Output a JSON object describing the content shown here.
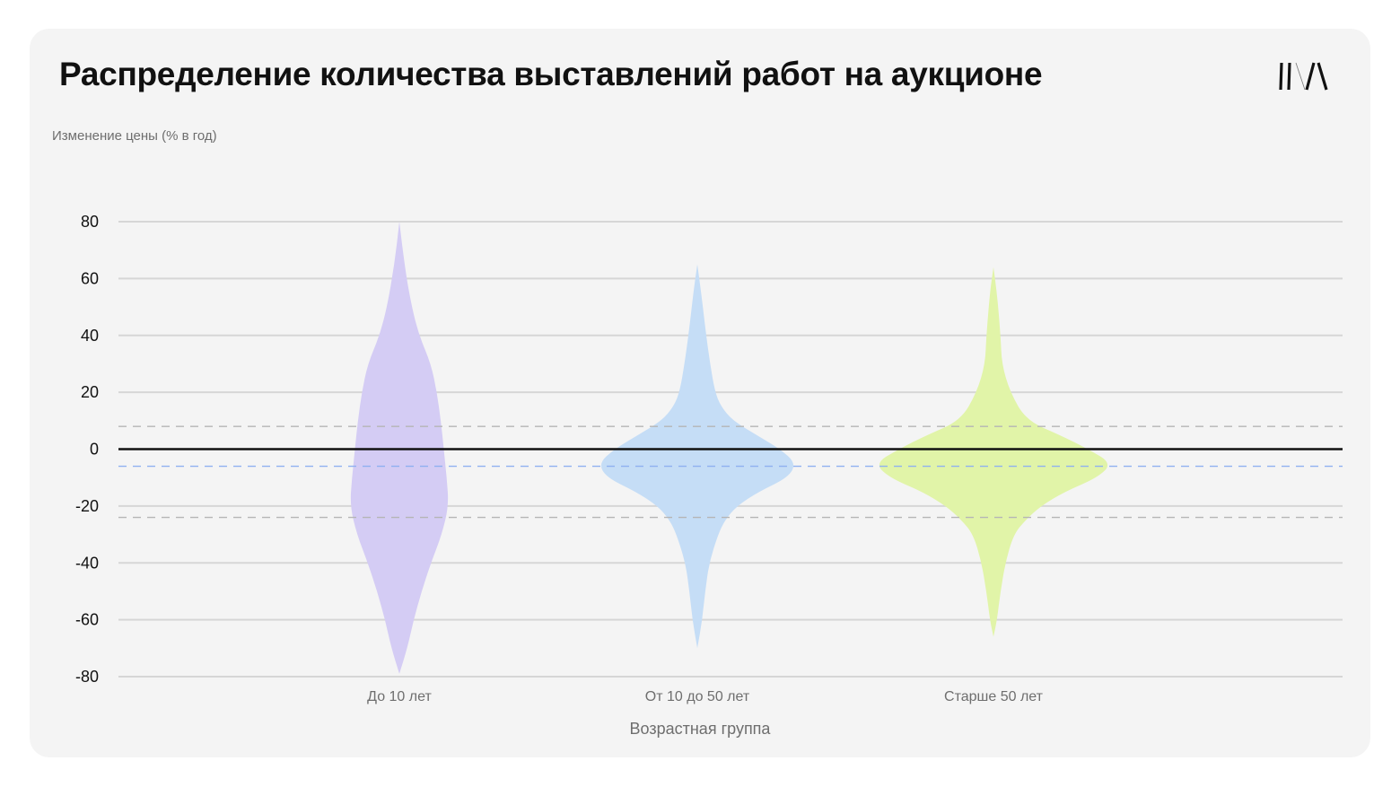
{
  "header": {
    "title": "Распределение количества выставлений работ на аукционе"
  },
  "logo": {
    "icon": "brand-logo-icon"
  },
  "chart_data": {
    "type": "violin",
    "title": "Распределение количества выставлений работ на аукционе",
    "ylabel": "Изменение цены (% в год)",
    "xlabel": "Возрастная группа",
    "ylim": [
      -80,
      80
    ],
    "yticks": [
      "80",
      "60",
      "40",
      "20",
      "0",
      "-20",
      "-40",
      "-60",
      "-80"
    ],
    "ytick_values": [
      80,
      60,
      40,
      20,
      0,
      -20,
      -40,
      -60,
      -80
    ],
    "grid": true,
    "reference_lines": [
      {
        "y": 0,
        "style": "solid",
        "color": "#111111"
      },
      {
        "y": 8,
        "style": "dashed",
        "color": "#b5b5b5"
      },
      {
        "y": -6,
        "style": "dashed",
        "color": "#8fb0f0"
      },
      {
        "y": -24,
        "style": "dashed",
        "color": "#b5b5b5"
      }
    ],
    "categories": [
      "До 10 лет",
      "От 10 до 50 лет",
      "Старше 50 лет"
    ],
    "series": [
      {
        "color": "#d4ccf4",
        "profile": [
          [
            80,
            0
          ],
          [
            65,
            0.1
          ],
          [
            50,
            0.25
          ],
          [
            40,
            0.4
          ],
          [
            30,
            0.64
          ],
          [
            20,
            0.76
          ],
          [
            10,
            0.84
          ],
          [
            0,
            0.9
          ],
          [
            -10,
            0.96
          ],
          [
            -20,
            1.0
          ],
          [
            -30,
            0.86
          ],
          [
            -40,
            0.64
          ],
          [
            -50,
            0.45
          ],
          [
            -60,
            0.29
          ],
          [
            -70,
            0.16
          ],
          [
            -79,
            0
          ]
        ]
      },
      {
        "color": "#c5ddf6",
        "profile": [
          [
            65,
            0
          ],
          [
            55,
            0.04
          ],
          [
            40,
            0.09
          ],
          [
            30,
            0.13
          ],
          [
            20,
            0.18
          ],
          [
            15,
            0.24
          ],
          [
            10,
            0.36
          ],
          [
            5,
            0.6
          ],
          [
            0,
            0.84
          ],
          [
            -5,
            1.0
          ],
          [
            -10,
            0.92
          ],
          [
            -15,
            0.62
          ],
          [
            -20,
            0.4
          ],
          [
            -25,
            0.28
          ],
          [
            -30,
            0.21
          ],
          [
            -40,
            0.12
          ],
          [
            -50,
            0.08
          ],
          [
            -60,
            0.05
          ],
          [
            -70,
            0
          ]
        ]
      },
      {
        "color": "#e1f4a8",
        "profile": [
          [
            64,
            0
          ],
          [
            55,
            0.03
          ],
          [
            40,
            0.06
          ],
          [
            30,
            0.07
          ],
          [
            20,
            0.14
          ],
          [
            10,
            0.28
          ],
          [
            5,
            0.56
          ],
          [
            0,
            0.8
          ],
          [
            -5,
            1.0
          ],
          [
            -10,
            0.88
          ],
          [
            -15,
            0.6
          ],
          [
            -20,
            0.4
          ],
          [
            -25,
            0.27
          ],
          [
            -30,
            0.17
          ],
          [
            -40,
            0.1
          ],
          [
            -50,
            0.06
          ],
          [
            -60,
            0.03
          ],
          [
            -66,
            0
          ]
        ]
      }
    ]
  }
}
